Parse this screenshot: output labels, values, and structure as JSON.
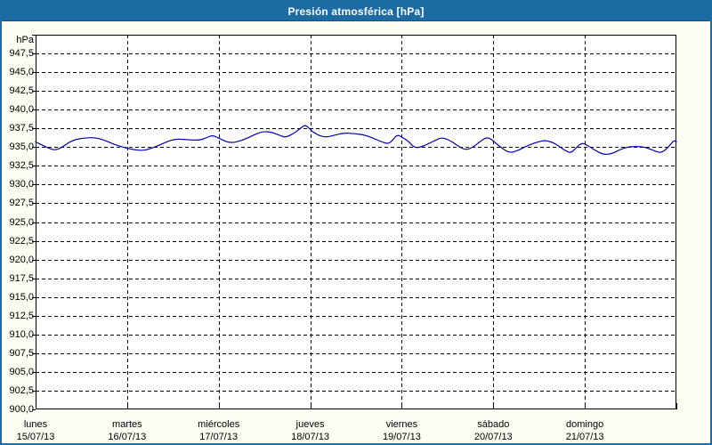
{
  "window": {
    "title": "Presión atmosférica [hPa]"
  },
  "colors": {
    "titlebar_bg": "#1c6ba3",
    "window_border": "#1e6ca4",
    "window_bg": "#fcfdf2",
    "plot_bg": "#ffffff",
    "grid": "#000000",
    "series_line": "#0000b0",
    "text": "#000000"
  },
  "chart_data": {
    "type": "line",
    "title": "Presión atmosférica [hPa]",
    "y_unit": "hPa",
    "ylim": [
      900,
      950
    ],
    "ytick_step": 2.5,
    "ytick_labels": [
      "947,5",
      "945,0",
      "942,5",
      "940,0",
      "937,5",
      "935,0",
      "932,5",
      "930,0",
      "927,5",
      "925,0",
      "922,5",
      "920,0",
      "917,5",
      "915,0",
      "912,5",
      "910,0",
      "907,5",
      "905,0",
      "902,5",
      "900,0"
    ],
    "xlim_days": [
      0,
      7
    ],
    "x_days": [
      {
        "name": "lunes",
        "date": "15/07/13"
      },
      {
        "name": "martes",
        "date": "16/07/13"
      },
      {
        "name": "miércoles",
        "date": "17/07/13"
      },
      {
        "name": "jueves",
        "date": "18/07/13"
      },
      {
        "name": "viernes",
        "date": "19/07/13"
      },
      {
        "name": "sábado",
        "date": "20/07/13"
      },
      {
        "name": "domingo",
        "date": "21/07/13"
      }
    ],
    "grid": "dashed",
    "legend": "none",
    "series": [
      {
        "name": "Presión atmosférica",
        "color": "#0000b0",
        "points_day_hpa": [
          [
            0.0,
            935.7
          ],
          [
            0.07,
            935.3
          ],
          [
            0.15,
            934.8
          ],
          [
            0.21,
            934.6
          ],
          [
            0.28,
            934.9
          ],
          [
            0.36,
            935.6
          ],
          [
            0.43,
            936.0
          ],
          [
            0.52,
            936.2
          ],
          [
            0.63,
            936.3
          ],
          [
            0.74,
            936.0
          ],
          [
            0.85,
            935.4
          ],
          [
            0.95,
            935.0
          ],
          [
            1.05,
            934.7
          ],
          [
            1.18,
            934.5
          ],
          [
            1.3,
            935.0
          ],
          [
            1.43,
            935.7
          ],
          [
            1.53,
            936.1
          ],
          [
            1.65,
            936.0
          ],
          [
            1.78,
            935.9
          ],
          [
            1.86,
            936.2
          ],
          [
            1.93,
            936.6
          ],
          [
            2.0,
            936.2
          ],
          [
            2.12,
            935.5
          ],
          [
            2.26,
            935.9
          ],
          [
            2.38,
            936.6
          ],
          [
            2.48,
            937.1
          ],
          [
            2.58,
            937.0
          ],
          [
            2.68,
            936.5
          ],
          [
            2.73,
            936.3
          ],
          [
            2.82,
            936.8
          ],
          [
            2.9,
            937.6
          ],
          [
            2.95,
            938.0
          ],
          [
            3.01,
            937.2
          ],
          [
            3.08,
            936.6
          ],
          [
            3.17,
            936.3
          ],
          [
            3.27,
            936.6
          ],
          [
            3.37,
            936.9
          ],
          [
            3.47,
            936.8
          ],
          [
            3.57,
            936.7
          ],
          [
            3.67,
            936.3
          ],
          [
            3.76,
            935.8
          ],
          [
            3.85,
            935.4
          ],
          [
            3.9,
            935.9
          ],
          [
            3.95,
            936.7
          ],
          [
            4.02,
            936.2
          ],
          [
            4.08,
            935.7
          ],
          [
            4.14,
            934.9
          ],
          [
            4.21,
            935.0
          ],
          [
            4.3,
            935.5
          ],
          [
            4.38,
            936.0
          ],
          [
            4.45,
            936.3
          ],
          [
            4.54,
            935.8
          ],
          [
            4.62,
            935.1
          ],
          [
            4.7,
            934.6
          ],
          [
            4.78,
            935.0
          ],
          [
            4.86,
            935.8
          ],
          [
            4.94,
            936.4
          ],
          [
            5.03,
            935.5
          ],
          [
            5.1,
            934.8
          ],
          [
            5.18,
            934.2
          ],
          [
            5.28,
            934.6
          ],
          [
            5.39,
            935.3
          ],
          [
            5.49,
            935.7
          ],
          [
            5.56,
            935.9
          ],
          [
            5.64,
            935.7
          ],
          [
            5.72,
            935.1
          ],
          [
            5.79,
            934.5
          ],
          [
            5.85,
            934.2
          ],
          [
            5.91,
            935.0
          ],
          [
            5.97,
            935.6
          ],
          [
            6.03,
            935.2
          ],
          [
            6.11,
            934.6
          ],
          [
            6.2,
            934.0
          ],
          [
            6.29,
            934.1
          ],
          [
            6.39,
            934.7
          ],
          [
            6.46,
            935.0
          ],
          [
            6.56,
            935.1
          ],
          [
            6.66,
            935.0
          ],
          [
            6.76,
            934.5
          ],
          [
            6.84,
            934.2
          ],
          [
            6.92,
            935.1
          ],
          [
            6.97,
            935.9
          ],
          [
            7.0,
            935.7
          ]
        ]
      }
    ]
  }
}
